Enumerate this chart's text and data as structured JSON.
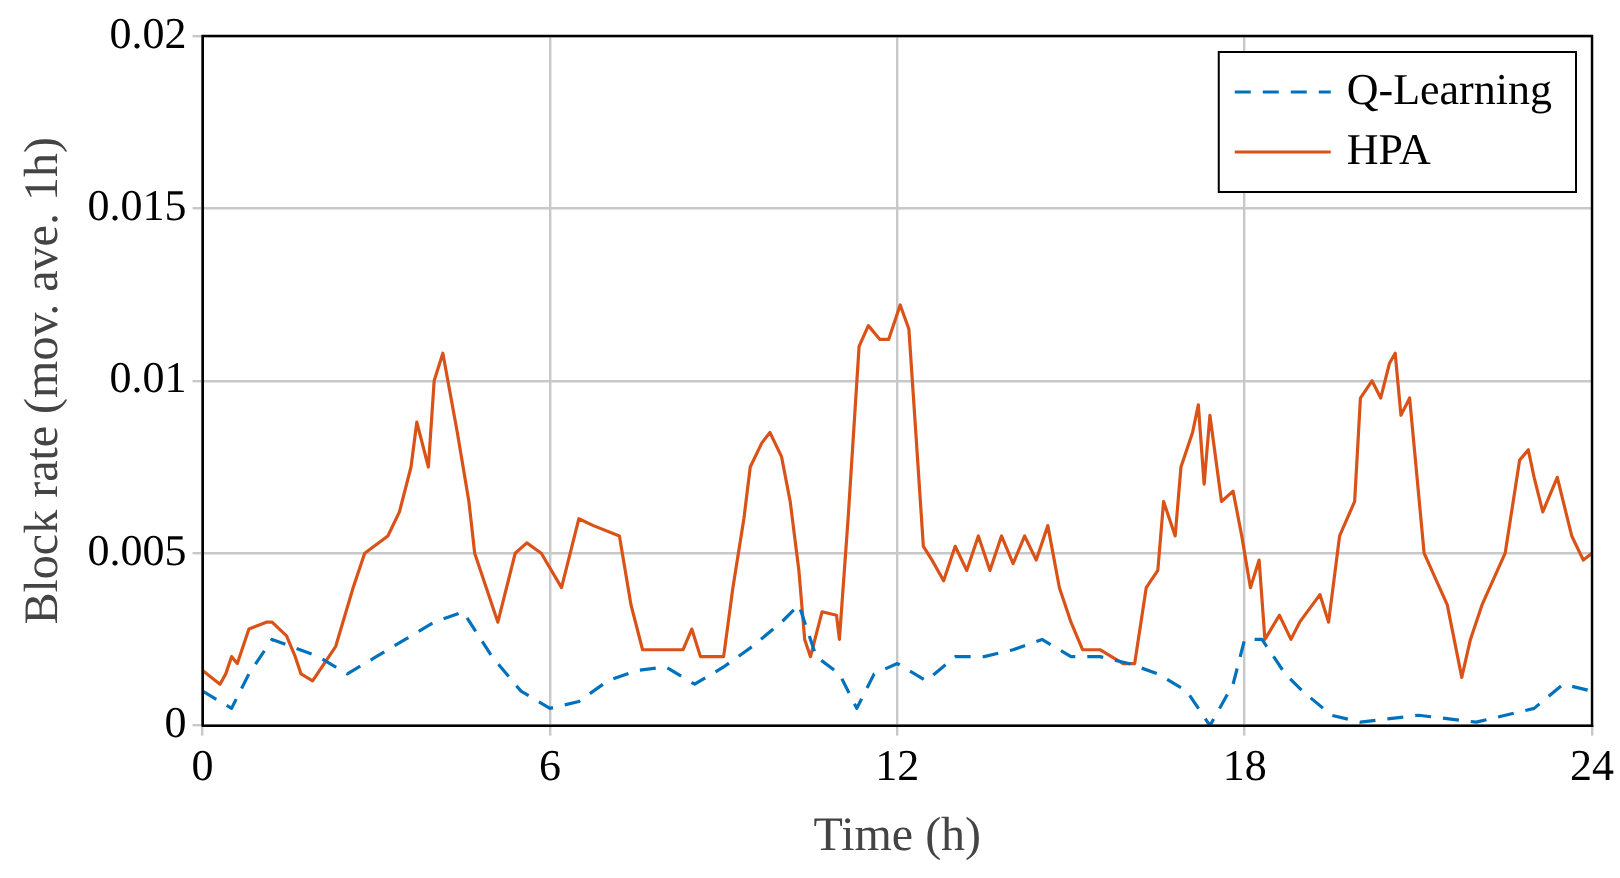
{
  "chart_data": {
    "type": "line",
    "xlabel": "Time (h)",
    "ylabel": "Block rate (mov. ave. 1h)",
    "xlim": [
      0,
      24
    ],
    "xticks": [
      0,
      6,
      12,
      18,
      24
    ],
    "ylim": [
      0,
      0.02
    ],
    "yticks": [
      0,
      0.005,
      0.01,
      0.015,
      0.02
    ],
    "grid": true,
    "legend": "top right",
    "marker": "none",
    "series": [
      {
        "name": "Q-Learning",
        "color": "#0072bd",
        "line_style": "dashed",
        "x": [
          0,
          0.5,
          0.8,
          1.2,
          2.0,
          2.5,
          3.0,
          3.5,
          4.0,
          4.5,
          5.0,
          5.5,
          6.0,
          6.5,
          7.0,
          7.5,
          8.0,
          8.5,
          9.0,
          9.5,
          10.0,
          10.3,
          10.6,
          11.0,
          11.3,
          11.6,
          12.0,
          12.5,
          13.0,
          13.5,
          14.0,
          14.5,
          15.0,
          15.5,
          16.0,
          16.5,
          17.0,
          17.4,
          17.8,
          18.0,
          18.3,
          18.7,
          19.0,
          19.5,
          20.0,
          21.0,
          22.0,
          23.0,
          23.5,
          24
        ],
        "values": [
          0.001,
          0.0005,
          0.0015,
          0.0025,
          0.002,
          0.0015,
          0.002,
          0.0025,
          0.003,
          0.0033,
          0.002,
          0.001,
          0.0005,
          0.0007,
          0.0013,
          0.0016,
          0.0017,
          0.0012,
          0.0017,
          0.0023,
          0.003,
          0.0035,
          0.002,
          0.0015,
          0.0005,
          0.0015,
          0.0018,
          0.0013,
          0.002,
          0.002,
          0.0022,
          0.0025,
          0.002,
          0.002,
          0.0018,
          0.0015,
          0.001,
          0,
          0.0012,
          0.0025,
          0.0025,
          0.0015,
          0.001,
          0.0003,
          0.0001,
          0.0003,
          0.0001,
          0.0005,
          0.0012,
          0.001
        ]
      },
      {
        "name": "HPA",
        "color": "#d95319",
        "line_style": "solid",
        "x": [
          0,
          0.3,
          0.4,
          0.5,
          0.6,
          0.8,
          1.1,
          1.2,
          1.45,
          1.6,
          1.7,
          1.9,
          2.1,
          2.3,
          2.6,
          2.8,
          3.2,
          3.4,
          3.6,
          3.7,
          3.9,
          4.0,
          4.15,
          4.4,
          4.6,
          4.7,
          5.1,
          5.4,
          5.6,
          5.85,
          6.2,
          6.5,
          6.75,
          7.2,
          7.4,
          7.6,
          7.8,
          8.1,
          8.3,
          8.45,
          8.6,
          9.0,
          9.16,
          9.35,
          9.46,
          9.66,
          9.8,
          10.0,
          10.15,
          10.3,
          10.4,
          10.5,
          10.7,
          10.95,
          11.0,
          11.15,
          11.34,
          11.5,
          11.7,
          11.85,
          12.05,
          12.2,
          12.3,
          12.45,
          12.6,
          12.8,
          13.0,
          13.2,
          13.4,
          13.6,
          13.8,
          14.0,
          14.2,
          14.4,
          14.6,
          14.8,
          15.0,
          15.2,
          15.5,
          15.7,
          15.9,
          16.1,
          16.3,
          16.5,
          16.6,
          16.8,
          16.9,
          17.1,
          17.2,
          17.3,
          17.4,
          17.6,
          17.8,
          17.95,
          18.1,
          18.25,
          18.35,
          18.6,
          18.8,
          18.95,
          19.3,
          19.45,
          19.64,
          19.9,
          20.0,
          20.2,
          20.35,
          20.5,
          20.6,
          20.7,
          20.85,
          21.1,
          21.5,
          21.75,
          21.9,
          22.1,
          22.5,
          22.75,
          22.9,
          23.0,
          23.15,
          23.4,
          23.65,
          23.85,
          24
        ],
        "values": [
          0.0016,
          0.0012,
          0.0015,
          0.002,
          0.0018,
          0.0028,
          0.003,
          0.003,
          0.0026,
          0.002,
          0.0015,
          0.0013,
          0.0018,
          0.0023,
          0.004,
          0.005,
          0.0055,
          0.0062,
          0.0075,
          0.0088,
          0.0075,
          0.01,
          0.0108,
          0.0085,
          0.0065,
          0.005,
          0.003,
          0.005,
          0.0053,
          0.005,
          0.004,
          0.006,
          0.0058,
          0.0055,
          0.0035,
          0.0022,
          0.0022,
          0.0022,
          0.0022,
          0.0028,
          0.002,
          0.002,
          0.004,
          0.006,
          0.0075,
          0.0082,
          0.0085,
          0.0078,
          0.0065,
          0.0045,
          0.0025,
          0.002,
          0.0033,
          0.0032,
          0.0025,
          0.006,
          0.011,
          0.0116,
          0.0112,
          0.0112,
          0.0122,
          0.0115,
          0.009,
          0.0052,
          0.0048,
          0.0042,
          0.0052,
          0.0045,
          0.0055,
          0.0045,
          0.0055,
          0.0047,
          0.0055,
          0.0048,
          0.0058,
          0.004,
          0.003,
          0.0022,
          0.0022,
          0.002,
          0.0018,
          0.0018,
          0.004,
          0.0045,
          0.0065,
          0.0055,
          0.0075,
          0.0085,
          0.0093,
          0.007,
          0.009,
          0.0065,
          0.0068,
          0.0055,
          0.004,
          0.0048,
          0.0025,
          0.0032,
          0.0025,
          0.003,
          0.0038,
          0.003,
          0.0055,
          0.0065,
          0.0095,
          0.01,
          0.0095,
          0.0105,
          0.0108,
          0.009,
          0.0095,
          0.005,
          0.0035,
          0.0014,
          0.0025,
          0.0035,
          0.005,
          0.0077,
          0.008,
          0.0072,
          0.0062,
          0.0072,
          0.0055,
          0.0048,
          0.005
        ]
      }
    ]
  }
}
